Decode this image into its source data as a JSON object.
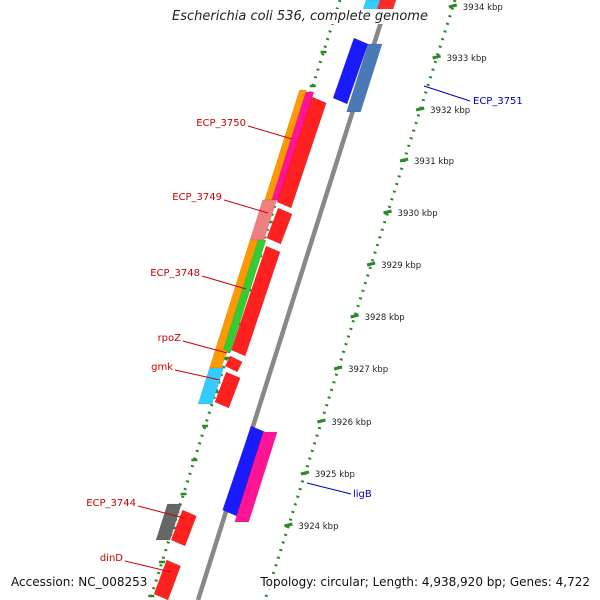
{
  "title": "Escherichia coli 536, complete genome",
  "accession": "Accession: NC_008253",
  "summary": "Topology: circular; Length: 4,938,920 bp; Genes: 4,722",
  "colors": {
    "backbone": "#888888",
    "tick": "#2a8a2a",
    "feature_label_red": "#cc0000",
    "feature_label_blue": "#0000bb"
  },
  "ticks": [
    {
      "label": "3934 kbp"
    },
    {
      "label": "3933 kbp"
    },
    {
      "label": "3932 kbp"
    },
    {
      "label": "3931 kbp"
    },
    {
      "label": "3930 kbp"
    },
    {
      "label": "3929 kbp"
    },
    {
      "label": "3928 kbp"
    },
    {
      "label": "3927 kbp"
    },
    {
      "label": "3926 kbp"
    },
    {
      "label": "3925 kbp"
    },
    {
      "label": "3924 kbp"
    }
  ],
  "genes": [
    {
      "label": "ECP_3751",
      "color_name": "blue"
    },
    {
      "label": "ECP_3750",
      "color_name": "red"
    },
    {
      "label": "ECP_3749",
      "color_name": "red"
    },
    {
      "label": "ECP_3748",
      "color_name": "red"
    },
    {
      "label": "rpoZ",
      "color_name": "red"
    },
    {
      "label": "gmk",
      "color_name": "red"
    },
    {
      "label": "ligB",
      "color_name": "blue"
    },
    {
      "label": "ECP_3744",
      "color_name": "red"
    },
    {
      "label": "dinD",
      "color_name": "red"
    }
  ]
}
